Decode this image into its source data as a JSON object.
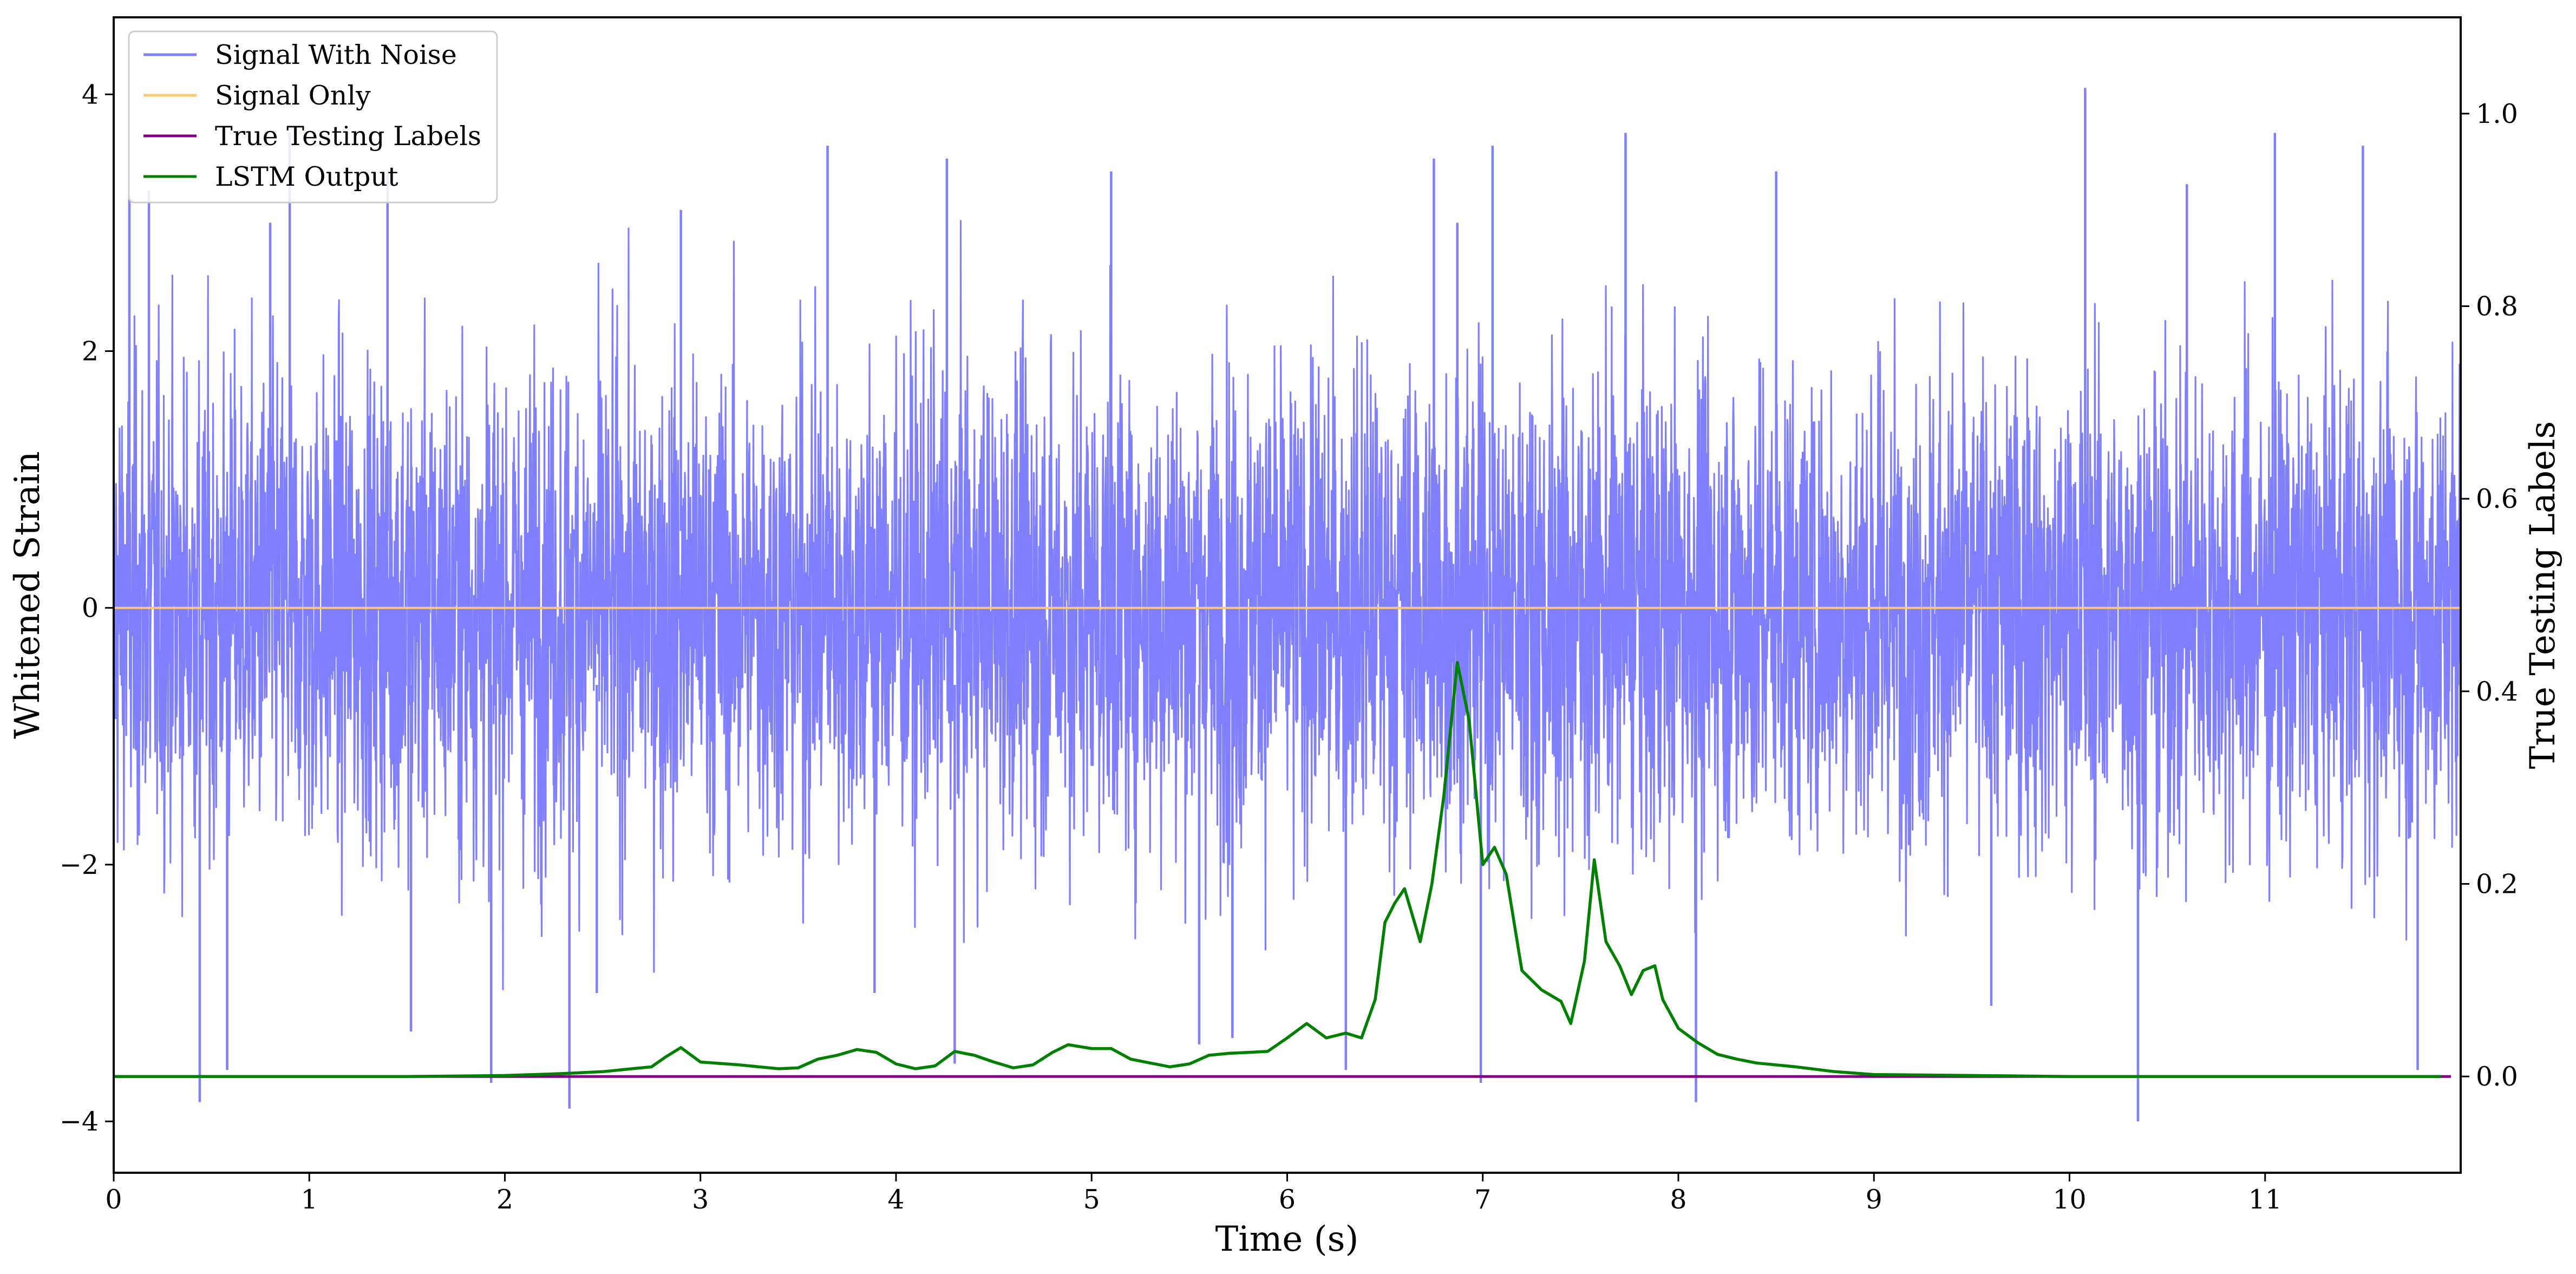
{
  "chart_data": {
    "type": "line",
    "title": "",
    "xlabel": "Time (s)",
    "ylabel": "Whitened Strain",
    "ylabel_right": "True Testing Labels",
    "xlim": [
      0,
      12
    ],
    "ylim": [
      -4.4,
      4.6
    ],
    "ylim_right": [
      -0.1,
      1.1
    ],
    "xticks": [
      "0",
      "1",
      "2",
      "3",
      "4",
      "5",
      "6",
      "7",
      "8",
      "9",
      "10",
      "11"
    ],
    "yticks": [
      "4",
      "2",
      "0",
      "−2",
      "−4"
    ],
    "yticks_right": [
      "1.0",
      "0.8",
      "0.6",
      "0.4",
      "0.2",
      "0.0"
    ],
    "grid": false,
    "legend_position": "top-left",
    "colors": {
      "signal_with_noise": "#7f7fff",
      "signal_only": "#ffc870",
      "true_testing_labels": "#800080",
      "lstm_output": "#008000"
    },
    "series": [
      {
        "name": "Signal With Noise",
        "axis": "left",
        "style": "dense noise, approximately symmetric about 0, typical amplitude about +/-1.5 with spikes to about +/-3.5",
        "noise_band": [
          -1.5,
          1.5
        ],
        "spikes": [
          {
            "x": 0.08,
            "y": 3.2
          },
          {
            "x": 0.18,
            "y": 3.25
          },
          {
            "x": 0.44,
            "y": -3.85
          },
          {
            "x": 0.58,
            "y": -3.6
          },
          {
            "x": 0.8,
            "y": 3.0
          },
          {
            "x": 0.9,
            "y": 3.7
          },
          {
            "x": 1.4,
            "y": 3.4
          },
          {
            "x": 1.52,
            "y": -3.3
          },
          {
            "x": 1.93,
            "y": -3.7
          },
          {
            "x": 2.33,
            "y": -3.9
          },
          {
            "x": 2.47,
            "y": -3.0
          },
          {
            "x": 2.9,
            "y": 3.1
          },
          {
            "x": 3.65,
            "y": 3.6
          },
          {
            "x": 3.89,
            "y": -3.0
          },
          {
            "x": 4.26,
            "y": 3.5
          },
          {
            "x": 4.3,
            "y": -3.55
          },
          {
            "x": 5.1,
            "y": 3.4
          },
          {
            "x": 5.55,
            "y": -3.4
          },
          {
            "x": 5.72,
            "y": -3.35
          },
          {
            "x": 6.3,
            "y": -3.6
          },
          {
            "x": 6.75,
            "y": 3.5
          },
          {
            "x": 6.87,
            "y": 3.0
          },
          {
            "x": 6.99,
            "y": -3.7
          },
          {
            "x": 7.05,
            "y": 3.6
          },
          {
            "x": 7.73,
            "y": 3.7
          },
          {
            "x": 8.09,
            "y": -3.85
          },
          {
            "x": 8.5,
            "y": 3.4
          },
          {
            "x": 9.6,
            "y": -3.1
          },
          {
            "x": 10.08,
            "y": 4.05
          },
          {
            "x": 10.35,
            "y": -4.0
          },
          {
            "x": 10.6,
            "y": 3.3
          },
          {
            "x": 11.05,
            "y": 3.7
          },
          {
            "x": 11.5,
            "y": 3.6
          },
          {
            "x": 11.78,
            "y": -3.6
          }
        ]
      },
      {
        "name": "Signal Only",
        "axis": "left",
        "x": [
          0,
          12
        ],
        "y": [
          0,
          0
        ]
      },
      {
        "name": "True Testing Labels",
        "axis": "right",
        "x": [
          0,
          11.95
        ],
        "y": [
          0,
          0
        ]
      },
      {
        "name": "LSTM Output",
        "axis": "right",
        "x": [
          0,
          1.0,
          1.5,
          2.0,
          2.3,
          2.5,
          2.65,
          2.75,
          2.82,
          2.9,
          3.0,
          3.2,
          3.4,
          3.5,
          3.6,
          3.7,
          3.8,
          3.9,
          4.0,
          4.1,
          4.2,
          4.3,
          4.4,
          4.5,
          4.6,
          4.7,
          4.8,
          4.88,
          5.0,
          5.1,
          5.2,
          5.3,
          5.4,
          5.5,
          5.6,
          5.7,
          5.8,
          5.9,
          6.0,
          6.1,
          6.2,
          6.3,
          6.38,
          6.45,
          6.5,
          6.55,
          6.6,
          6.68,
          6.74,
          6.8,
          6.87,
          6.93,
          7.0,
          7.06,
          7.12,
          7.2,
          7.3,
          7.4,
          7.45,
          7.52,
          7.57,
          7.63,
          7.7,
          7.76,
          7.82,
          7.88,
          7.92,
          8.0,
          8.1,
          8.2,
          8.3,
          8.4,
          8.6,
          8.8,
          9.0,
          9.5,
          10.0,
          10.5,
          11.0,
          11.9
        ],
        "y": [
          0.0,
          0.0,
          0.0,
          0.001,
          0.003,
          0.005,
          0.008,
          0.01,
          0.02,
          0.03,
          0.015,
          0.012,
          0.008,
          0.009,
          0.018,
          0.022,
          0.028,
          0.025,
          0.013,
          0.008,
          0.011,
          0.026,
          0.022,
          0.015,
          0.009,
          0.012,
          0.025,
          0.033,
          0.029,
          0.029,
          0.018,
          0.014,
          0.01,
          0.013,
          0.022,
          0.024,
          0.025,
          0.026,
          0.04,
          0.055,
          0.04,
          0.045,
          0.04,
          0.08,
          0.16,
          0.18,
          0.195,
          0.14,
          0.2,
          0.29,
          0.43,
          0.37,
          0.22,
          0.238,
          0.21,
          0.11,
          0.09,
          0.078,
          0.055,
          0.12,
          0.225,
          0.14,
          0.115,
          0.085,
          0.11,
          0.115,
          0.08,
          0.05,
          0.035,
          0.023,
          0.018,
          0.014,
          0.01,
          0.005,
          0.002,
          0.001,
          0.0,
          0.0,
          0.0,
          0.0
        ]
      }
    ]
  }
}
